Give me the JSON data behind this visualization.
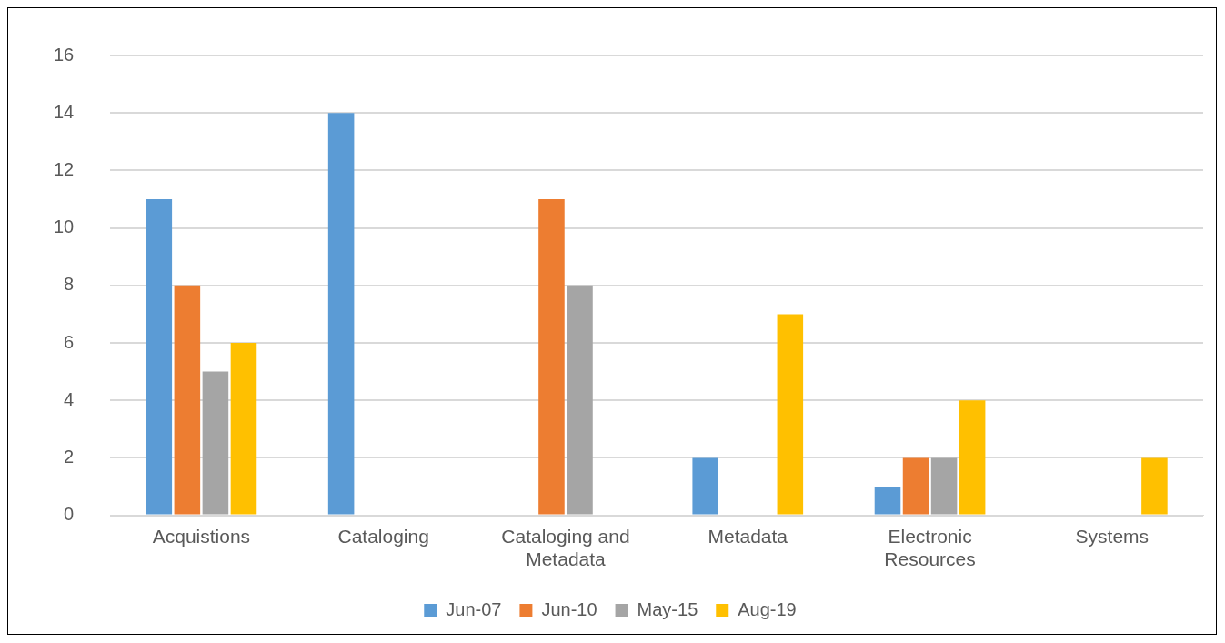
{
  "chart_data": {
    "type": "bar",
    "categories": [
      "Acquistions",
      "Cataloging",
      "Cataloging and Metadata",
      "Metadata",
      "Electronic Resources",
      "Systems"
    ],
    "series": [
      {
        "name": "Jun-07",
        "color": "#5b9bd5",
        "values": [
          11,
          14,
          null,
          2,
          1,
          null
        ]
      },
      {
        "name": "Jun-10",
        "color": "#ed7d31",
        "values": [
          8,
          null,
          11,
          null,
          2,
          null
        ]
      },
      {
        "name": "May-15",
        "color": "#a5a5a5",
        "values": [
          5,
          null,
          8,
          null,
          2,
          null
        ]
      },
      {
        "name": "Aug-19",
        "color": "#ffc000",
        "values": [
          6,
          null,
          null,
          7,
          4,
          2
        ]
      }
    ],
    "ylim": [
      0,
      16
    ],
    "yticks": [
      0,
      2,
      4,
      6,
      8,
      10,
      12,
      14,
      16
    ],
    "grid": "y",
    "legend": "bottom"
  }
}
